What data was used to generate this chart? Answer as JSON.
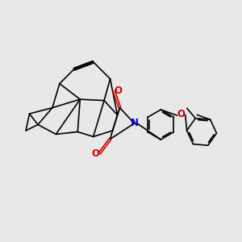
{
  "bg_color": "#e8e8e8",
  "bond_color": "#000000",
  "bond_width": 1.2,
  "N_color": "#0000cc",
  "O_color": "#cc0000",
  "figsize": [
    3.0,
    3.0
  ],
  "dpi": 100,
  "xlim": [
    0,
    10
  ],
  "ylim": [
    0,
    10
  ]
}
